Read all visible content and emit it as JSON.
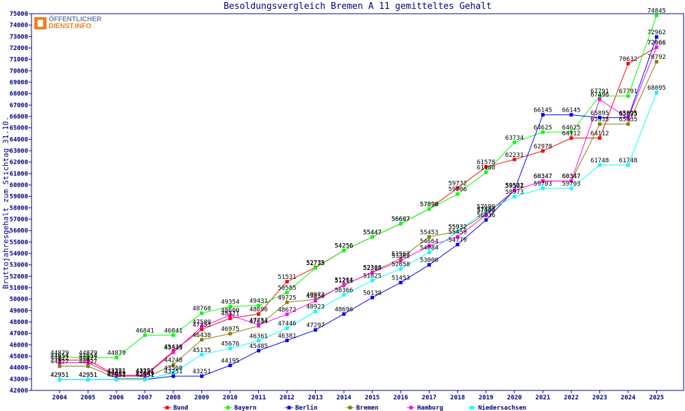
{
  "chart_data": {
    "type": "line",
    "title": "Besoldungsvergleich Bremen A 11 gemitteltes Gehalt",
    "ylabel": "Bruttojahresgehalt zum Stichtag 31.10.",
    "xlabel": "",
    "ylim": [
      42000,
      75000
    ],
    "ystep": 1000,
    "x": [
      "2004",
      "2005",
      "2006",
      "2007",
      "2008",
      "2009",
      "2010",
      "2011",
      "2012",
      "2013",
      "2014",
      "2015",
      "2016",
      "2017",
      "2018",
      "2019",
      "2020",
      "2021",
      "2022",
      "2023",
      "2024",
      "2025"
    ],
    "legend_position": "bottom",
    "grid": false,
    "series": [
      {
        "name": "Bund",
        "color": "#ff0000",
        "values": [
          44654,
          44654,
          43321,
          43321,
          45430,
          47353,
          48321,
          48696,
          51531,
          52775,
          54256,
          55447,
          56607,
          57898,
          59732,
          61578,
          62231,
          62978,
          64112,
          64112,
          70632,
          72066
        ]
      },
      {
        "name": "Bayern",
        "color": "#00ff00",
        "values": [
          44879,
          44879,
          44879,
          46841,
          46841,
          48768,
          49354,
          49431,
          50585,
          52735,
          54256,
          55447,
          56607,
          57899,
          59206,
          61108,
          63734,
          64625,
          64625,
          67791,
          67791,
          74845
        ]
      },
      {
        "name": "Berlin",
        "color": "#0000ff",
        "values": [
          42951,
          42951,
          42951,
          42951,
          43251,
          43251,
          44195,
          45485,
          46381,
          47297,
          48696,
          50138,
          51453,
          53000,
          54779,
          56936,
          59542,
          66145,
          66145,
          65895,
          65895,
          72962
        ]
      },
      {
        "name": "Bremen",
        "color": "#808000",
        "values": [
          44127,
          44127,
          43069,
          43069,
          44248,
          46438,
          46975,
          47654,
          49725,
          49973,
          51211,
          52364,
          53562,
          55453,
          55932,
          57453,
          59521,
          60347,
          60347,
          65335,
          65335,
          70792
        ]
      },
      {
        "name": "Hamburg",
        "color": "#ff00ff",
        "values": [
          44427,
          44427,
          43251,
          43251,
          45345,
          47589,
          48600,
          47731,
          48672,
          49856,
          51264,
          52325,
          53362,
          54664,
          55459,
          57360,
          59521,
          60347,
          60347,
          67496,
          65825,
          72066
        ]
      },
      {
        "name": "Niedersachsen",
        "color": "#00ffff",
        "values": [
          42951,
          42951,
          42951,
          42951,
          43560,
          45135,
          45676,
          46361,
          47446,
          48923,
          50366,
          51625,
          52658,
          54084,
          55932,
          57699,
          58973,
          59703,
          59703,
          61748,
          61748,
          68095
        ]
      }
    ]
  },
  "logo": {
    "line1": "ÖFFENTLICHER",
    "line2": "DIENST.INFO"
  }
}
